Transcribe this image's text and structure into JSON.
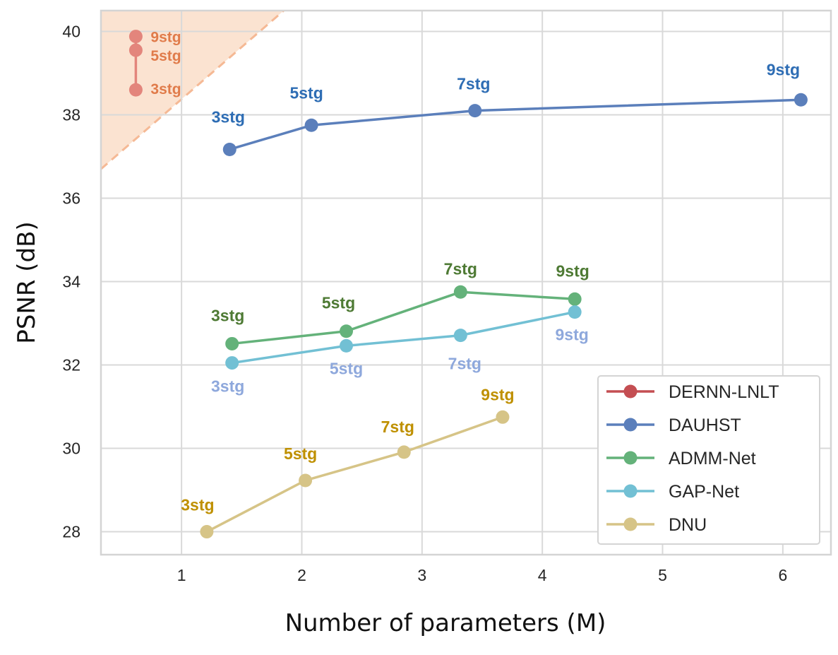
{
  "chart_data": {
    "type": "line",
    "title": "",
    "xlabel": "Number of parameters (M)",
    "ylabel": "PSNR (dB)",
    "xlim": [
      0.33,
      6.4
    ],
    "ylim": [
      27.45,
      40.5
    ],
    "xticks": [
      1,
      2,
      3,
      4,
      5,
      6
    ],
    "yticks": [
      28,
      30,
      32,
      34,
      36,
      38,
      40
    ],
    "grid": true,
    "legend_position": "bottom-right",
    "shaded_region": {
      "description": "shaded triangle above dashed line",
      "line": [
        [
          0.33,
          36.7
        ],
        [
          1.85,
          40.5
        ]
      ],
      "color": "#f9d9c2"
    },
    "series": [
      {
        "name": "DERNN-LNLT",
        "color": "#c44e52",
        "marker_color": "#e3857c",
        "label_color": "#e07b4a",
        "points": [
          {
            "x": 0.62,
            "y": 38.6,
            "label": "3stg"
          },
          {
            "x": 0.62,
            "y": 39.55,
            "label": "5stg"
          },
          {
            "x": 0.62,
            "y": 39.88,
            "label": "9stg"
          }
        ]
      },
      {
        "name": "DAUHST",
        "color": "#5b7fbb",
        "marker_color": "#5b7fbb",
        "label_color": "#2e6db4",
        "points": [
          {
            "x": 1.4,
            "y": 37.17,
            "label": "3stg"
          },
          {
            "x": 2.08,
            "y": 37.75,
            "label": "5stg"
          },
          {
            "x": 3.44,
            "y": 38.1,
            "label": "7stg"
          },
          {
            "x": 6.15,
            "y": 38.36,
            "label": "9stg"
          }
        ]
      },
      {
        "name": "ADMM-Net",
        "color": "#64b27a",
        "marker_color": "#64b27a",
        "label_color": "#4e7a34",
        "points": [
          {
            "x": 1.42,
            "y": 32.51,
            "label": "3stg"
          },
          {
            "x": 2.37,
            "y": 32.81,
            "label": "5stg"
          },
          {
            "x": 3.32,
            "y": 33.75,
            "label": "7stg"
          },
          {
            "x": 4.27,
            "y": 33.58,
            "label": "9stg"
          }
        ]
      },
      {
        "name": "GAP-Net",
        "color": "#72c0d4",
        "marker_color": "#72c0d4",
        "label_color": "#8ea8dc",
        "points": [
          {
            "x": 1.42,
            "y": 32.05,
            "label": "3stg"
          },
          {
            "x": 2.37,
            "y": 32.46,
            "label": "5stg"
          },
          {
            "x": 3.32,
            "y": 32.71,
            "label": "7stg"
          },
          {
            "x": 4.27,
            "y": 33.27,
            "label": "9stg"
          }
        ]
      },
      {
        "name": "DNU",
        "color": "#d6c487",
        "marker_color": "#d6c487",
        "label_color": "#bf9000",
        "points": [
          {
            "x": 1.21,
            "y": 28.0,
            "label": "3stg"
          },
          {
            "x": 2.03,
            "y": 29.23,
            "label": "5stg"
          },
          {
            "x": 2.85,
            "y": 29.91,
            "label": "7stg"
          },
          {
            "x": 3.67,
            "y": 30.75,
            "label": "9stg"
          }
        ]
      }
    ]
  }
}
